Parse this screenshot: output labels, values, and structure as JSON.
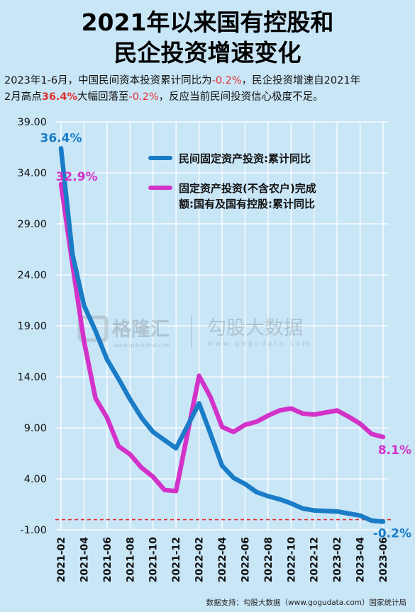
{
  "header": {
    "title_line1": "2021年以来国有控股和",
    "title_line2": "民企投资增速变化"
  },
  "subtitle": {
    "part1": "2023年1-6月，中国民间资本投资累计同比为",
    "val1": "-0.2%",
    "part2": "，民企投资增速自2021年",
    "part3": "2月高点",
    "val2": "36.4%",
    "part4": "大幅回落至",
    "val3": "-0.2%",
    "part5": "，反应当前民间投资信心极度不足。"
  },
  "watermark": {
    "brand1": "格隆汇",
    "brand1_url": "www.gelonghui.com",
    "brand2": "勾股大数据",
    "brand2_url": "www.gogudata.com"
  },
  "source_text": "数据支持：勾股大数据（www.gogudata.com）国家统计局",
  "colors": {
    "series_private": "#1a7cc7",
    "series_state": "#d332c8",
    "reference_line": "#e0302c",
    "background": "#c9e6f7",
    "grid": "#ffffff"
  },
  "chart_data": {
    "type": "line",
    "ylim": [
      -1,
      39
    ],
    "yticks": [
      "39.00",
      "34.00",
      "29.00",
      "24.00",
      "19.00",
      "14.00",
      "9.00",
      "4.00",
      "-1.00"
    ],
    "xticks": [
      "2021-02",
      "2021-04",
      "2021-06",
      "2021-08",
      "2021-10",
      "2021-12",
      "2022-02",
      "2022-04",
      "2022-06",
      "2022-08",
      "2022-10",
      "2022-12",
      "2023-02",
      "2023-04",
      "2023-06"
    ],
    "grid": true,
    "reference_line": {
      "y": 0,
      "style": "dashed"
    },
    "legend_position": "top-right",
    "series": [
      {
        "name": "民间固定资产投资:累计同比",
        "x": [
          "2021-02",
          "2021-03",
          "2021-04",
          "2021-05",
          "2021-06",
          "2021-07",
          "2021-08",
          "2021-09",
          "2021-10",
          "2021-11",
          "2021-12",
          "2022-02",
          "2022-03",
          "2022-04",
          "2022-05",
          "2022-06",
          "2022-07",
          "2022-08",
          "2022-09",
          "2022-10",
          "2022-11",
          "2022-12",
          "2023-02",
          "2023-03",
          "2023-04",
          "2023-05",
          "2023-06"
        ],
        "values": [
          36.4,
          26.0,
          21.0,
          18.5,
          15.7,
          13.8,
          11.8,
          10.0,
          8.6,
          7.8,
          7.0,
          11.4,
          8.4,
          5.3,
          4.1,
          3.5,
          2.7,
          2.3,
          2.0,
          1.6,
          1.1,
          0.9,
          0.8,
          0.6,
          0.4,
          -0.1,
          -0.2
        ],
        "end_labels": [
          "36.4%",
          "-0.2%"
        ]
      },
      {
        "name": "固定资产投资(不含农户)完成额:国有及国有控股:累计同比",
        "x": [
          "2021-02",
          "2021-03",
          "2021-04",
          "2021-05",
          "2021-06",
          "2021-07",
          "2021-08",
          "2021-09",
          "2021-10",
          "2021-11",
          "2021-12",
          "2022-02",
          "2022-03",
          "2022-04",
          "2022-05",
          "2022-06",
          "2022-07",
          "2022-08",
          "2022-09",
          "2022-10",
          "2022-11",
          "2022-12",
          "2023-02",
          "2023-03",
          "2023-04",
          "2023-05",
          "2023-06"
        ],
        "values": [
          32.9,
          25.0,
          17.5,
          11.9,
          10.0,
          7.2,
          6.4,
          5.1,
          4.2,
          2.9,
          2.8,
          14.1,
          12.0,
          9.1,
          8.6,
          9.3,
          9.6,
          10.2,
          10.7,
          10.9,
          10.4,
          10.3,
          10.7,
          10.1,
          9.4,
          8.4,
          8.1
        ],
        "end_labels": [
          "32.9%",
          "8.1%"
        ]
      }
    ]
  }
}
